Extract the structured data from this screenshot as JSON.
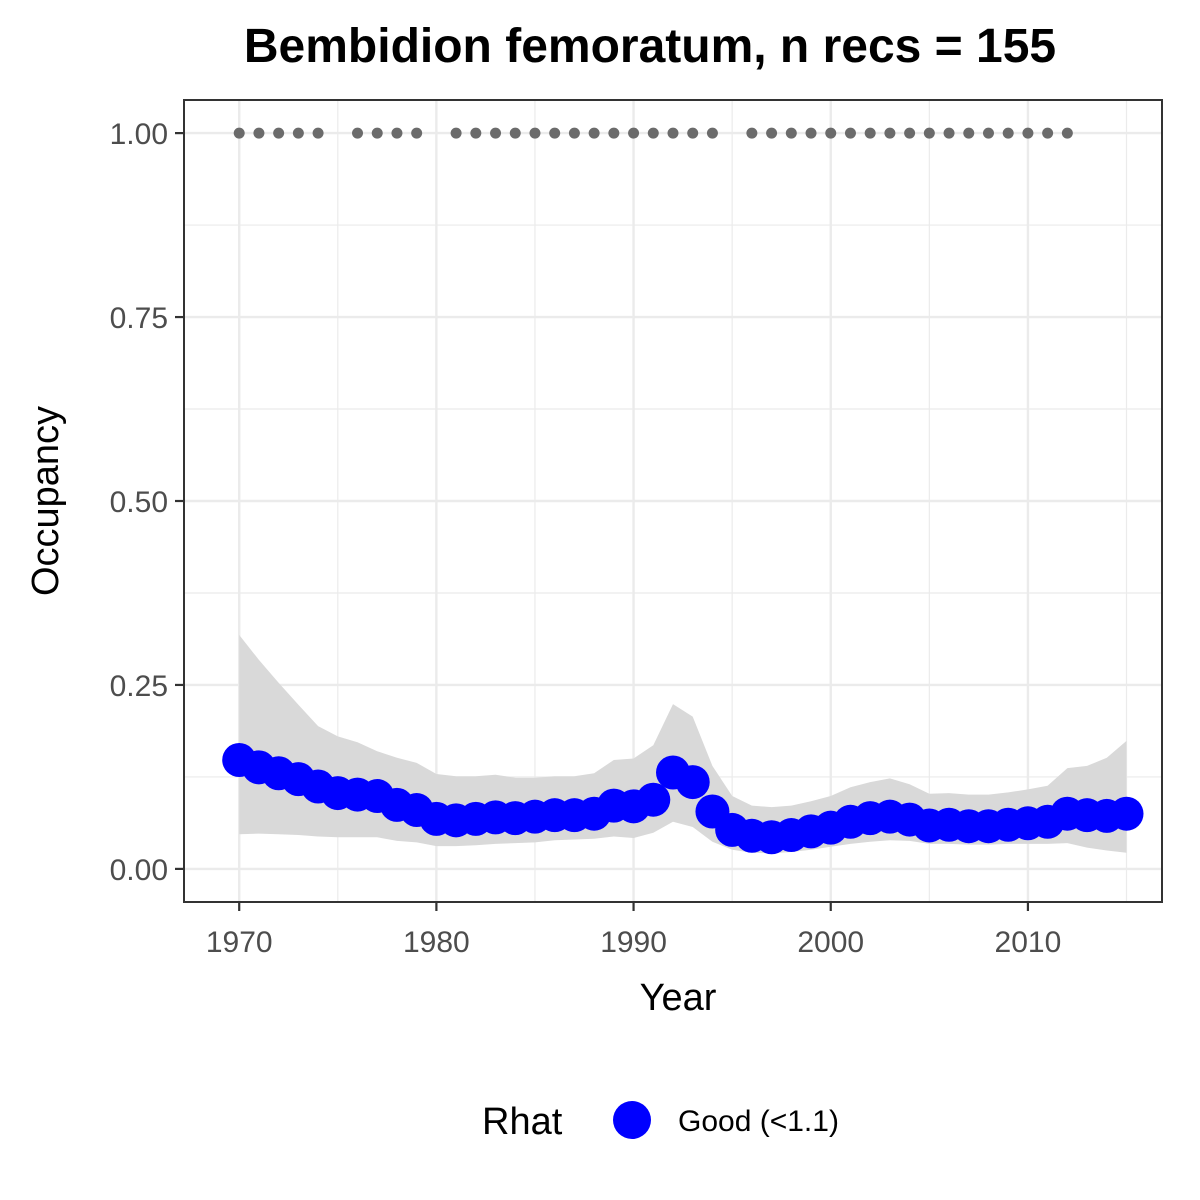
{
  "chart_data": {
    "type": "line",
    "title": "Bembidion femoratum, n recs = 155",
    "xlabel": "Year",
    "ylabel": "Occupancy",
    "xlim": [
      1967.2,
      2016.8
    ],
    "ylim": [
      -0.045,
      1.045
    ],
    "x_ticks": [
      1970,
      1980,
      1990,
      2000,
      2010
    ],
    "x_tick_labels": [
      "1970",
      "1980",
      "1990",
      "2000",
      "2010"
    ],
    "y_ticks": [
      0,
      0.25,
      0.5,
      0.75,
      1
    ],
    "y_tick_labels": [
      "0.00",
      "0.25",
      "0.50",
      "0.75",
      "1.00"
    ],
    "grid": true,
    "colors": {
      "points": "#0000ff",
      "ribbon": "#d9d9d9",
      "record_dots": "#6b6b6b",
      "grid": "#ebebeb",
      "panel_border": "#333333"
    },
    "series": [
      {
        "x": [
          1970,
          1971,
          1972,
          1973,
          1974,
          1975,
          1976,
          1977,
          1978,
          1979,
          1980,
          1981,
          1982,
          1983,
          1984,
          1985,
          1986,
          1987,
          1988,
          1989,
          1990,
          1991,
          1992,
          1993,
          1994,
          1995,
          1996,
          1997,
          1998,
          1999,
          2000,
          2001,
          2002,
          2003,
          2004,
          2005,
          2006,
          2007,
          2008,
          2009,
          2010,
          2011,
          2012,
          2013,
          2014,
          2015
        ],
        "y": [
          0.148,
          0.138,
          0.13,
          0.122,
          0.112,
          0.103,
          0.101,
          0.099,
          0.087,
          0.08,
          0.068,
          0.066,
          0.068,
          0.07,
          0.069,
          0.071,
          0.073,
          0.073,
          0.075,
          0.086,
          0.085,
          0.094,
          0.131,
          0.118,
          0.078,
          0.053,
          0.045,
          0.043,
          0.046,
          0.051,
          0.056,
          0.064,
          0.069,
          0.071,
          0.067,
          0.059,
          0.06,
          0.058,
          0.058,
          0.06,
          0.062,
          0.064,
          0.075,
          0.073,
          0.072,
          0.075
        ],
        "lower": [
          0.047,
          0.048,
          0.047,
          0.046,
          0.044,
          0.043,
          0.043,
          0.043,
          0.038,
          0.036,
          0.031,
          0.031,
          0.032,
          0.034,
          0.035,
          0.036,
          0.039,
          0.04,
          0.041,
          0.044,
          0.042,
          0.049,
          0.064,
          0.057,
          0.037,
          0.026,
          0.022,
          0.021,
          0.023,
          0.026,
          0.03,
          0.034,
          0.037,
          0.039,
          0.038,
          0.034,
          0.034,
          0.033,
          0.033,
          0.034,
          0.034,
          0.034,
          0.035,
          0.029,
          0.025,
          0.022
        ],
        "upper": [
          0.318,
          0.284,
          0.253,
          0.223,
          0.194,
          0.18,
          0.172,
          0.16,
          0.151,
          0.144,
          0.129,
          0.126,
          0.126,
          0.128,
          0.124,
          0.124,
          0.126,
          0.126,
          0.13,
          0.148,
          0.15,
          0.168,
          0.224,
          0.207,
          0.14,
          0.099,
          0.086,
          0.084,
          0.086,
          0.092,
          0.099,
          0.111,
          0.118,
          0.123,
          0.115,
          0.102,
          0.103,
          0.101,
          0.101,
          0.104,
          0.108,
          0.113,
          0.137,
          0.14,
          0.151,
          0.174
        ]
      }
    ],
    "records": {
      "y": 1.0,
      "x": [
        1970,
        1971,
        1972,
        1973,
        1974,
        1976,
        1977,
        1978,
        1979,
        1981,
        1982,
        1983,
        1984,
        1985,
        1986,
        1987,
        1988,
        1989,
        1990,
        1991,
        1992,
        1993,
        1994,
        1996,
        1997,
        1998,
        1999,
        2000,
        2001,
        2002,
        2003,
        2004,
        2005,
        2006,
        2007,
        2008,
        2009,
        2010,
        2011,
        2012
      ]
    },
    "legend": {
      "title": "Rhat",
      "entries": [
        {
          "label": "Good (<1.1)",
          "color": "#0000ff"
        }
      ],
      "position": "bottom"
    }
  }
}
